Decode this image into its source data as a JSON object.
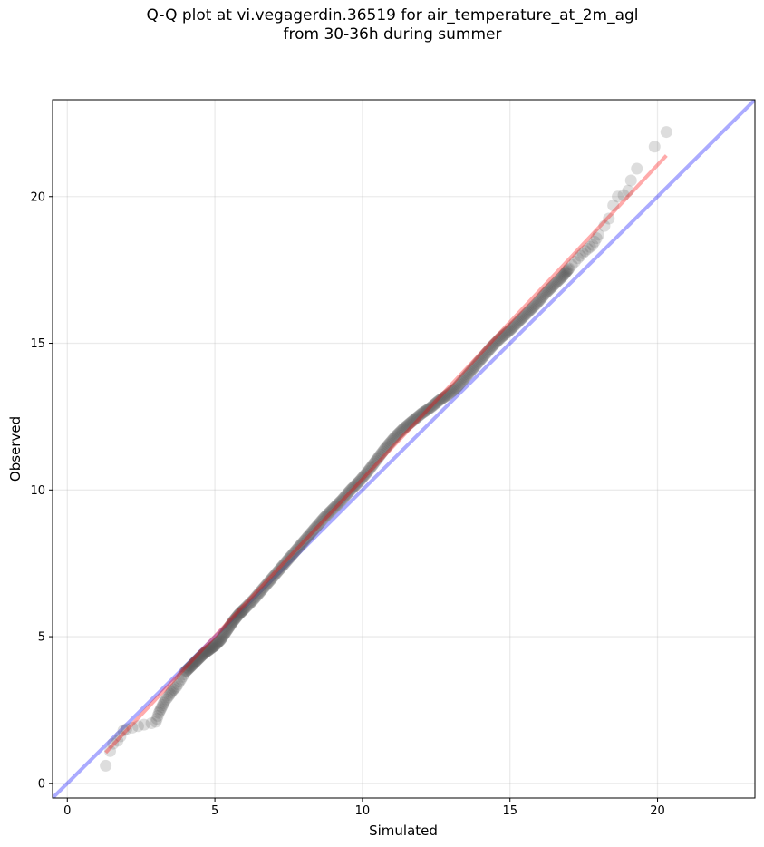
{
  "title_line1": "Q-Q plot at vi.vegagerdin.36519 for air_temperature_at_2m_agl",
  "title_line2": "from 30-36h during summer",
  "chart_data": {
    "type": "scatter",
    "title": "Q-Q plot at vi.vegagerdin.36519 for air_temperature_at_2m_agl\nfrom 30-36h during summer",
    "xlabel": "Simulated",
    "ylabel": "Observed",
    "xlim": [
      -0.5,
      23.3
    ],
    "ylim": [
      -0.5,
      23.3
    ],
    "xticks": [
      0,
      5,
      10,
      15,
      20
    ],
    "yticks": [
      0,
      5,
      10,
      15,
      20
    ],
    "grid": true,
    "series": [
      {
        "kind": "quantile_points",
        "color": "#555555",
        "points": [
          [
            1.3,
            0.6
          ],
          [
            1.45,
            1.1
          ],
          [
            1.55,
            1.35
          ],
          [
            1.7,
            1.45
          ],
          [
            1.8,
            1.6
          ],
          [
            1.9,
            1.8
          ],
          [
            2.0,
            1.85
          ],
          [
            2.2,
            1.9
          ],
          [
            2.4,
            1.95
          ],
          [
            2.6,
            2.0
          ],
          [
            2.85,
            2.05
          ],
          [
            3.0,
            2.1
          ],
          [
            3.1,
            2.4
          ],
          [
            3.2,
            2.6
          ],
          [
            3.3,
            2.8
          ],
          [
            3.45,
            3.0
          ],
          [
            3.55,
            3.15
          ],
          [
            3.7,
            3.3
          ],
          [
            3.85,
            3.55
          ],
          [
            4.0,
            3.8
          ],
          [
            4.2,
            4.0
          ],
          [
            4.4,
            4.2
          ],
          [
            4.6,
            4.4
          ],
          [
            4.8,
            4.55
          ],
          [
            5.0,
            4.7
          ],
          [
            5.2,
            4.9
          ],
          [
            5.4,
            5.2
          ],
          [
            5.6,
            5.5
          ],
          [
            5.8,
            5.75
          ],
          [
            6.0,
            5.95
          ],
          [
            6.3,
            6.25
          ],
          [
            6.6,
            6.6
          ],
          [
            6.9,
            6.95
          ],
          [
            7.2,
            7.3
          ],
          [
            7.5,
            7.65
          ],
          [
            7.8,
            8.0
          ],
          [
            8.1,
            8.35
          ],
          [
            8.4,
            8.7
          ],
          [
            8.7,
            9.05
          ],
          [
            9.0,
            9.35
          ],
          [
            9.3,
            9.65
          ],
          [
            9.6,
            10.0
          ],
          [
            9.9,
            10.3
          ],
          [
            10.2,
            10.65
          ],
          [
            10.5,
            11.05
          ],
          [
            10.8,
            11.45
          ],
          [
            11.1,
            11.8
          ],
          [
            11.4,
            12.1
          ],
          [
            11.7,
            12.35
          ],
          [
            12.0,
            12.6
          ],
          [
            12.3,
            12.8
          ],
          [
            12.6,
            13.05
          ],
          [
            12.9,
            13.25
          ],
          [
            13.2,
            13.5
          ],
          [
            13.5,
            13.85
          ],
          [
            13.8,
            14.2
          ],
          [
            14.1,
            14.55
          ],
          [
            14.4,
            14.9
          ],
          [
            14.7,
            15.2
          ],
          [
            15.0,
            15.45
          ],
          [
            15.3,
            15.75
          ],
          [
            15.6,
            16.05
          ],
          [
            15.9,
            16.35
          ],
          [
            16.2,
            16.7
          ],
          [
            16.5,
            17.0
          ],
          [
            16.8,
            17.3
          ],
          [
            17.0,
            17.55
          ],
          [
            17.3,
            17.9
          ],
          [
            17.55,
            18.15
          ],
          [
            17.8,
            18.35
          ],
          [
            18.0,
            18.7
          ],
          [
            18.2,
            19.0
          ],
          [
            18.35,
            19.25
          ],
          [
            18.5,
            19.7
          ],
          [
            18.65,
            20.0
          ],
          [
            18.85,
            20.05
          ],
          [
            19.0,
            20.2
          ],
          [
            19.1,
            20.55
          ],
          [
            19.3,
            20.95
          ],
          [
            19.9,
            21.7
          ],
          [
            20.3,
            22.2
          ]
        ]
      },
      {
        "kind": "identity_line",
        "color": "#0000ff",
        "opacity": 0.33,
        "x": [
          -0.5,
          23.3
        ],
        "y": [
          -0.5,
          23.3
        ]
      },
      {
        "kind": "fit_line",
        "color": "#ff0000",
        "opacity": 0.33,
        "x": [
          1.3,
          20.3
        ],
        "y": [
          1.05,
          21.4
        ]
      }
    ]
  }
}
